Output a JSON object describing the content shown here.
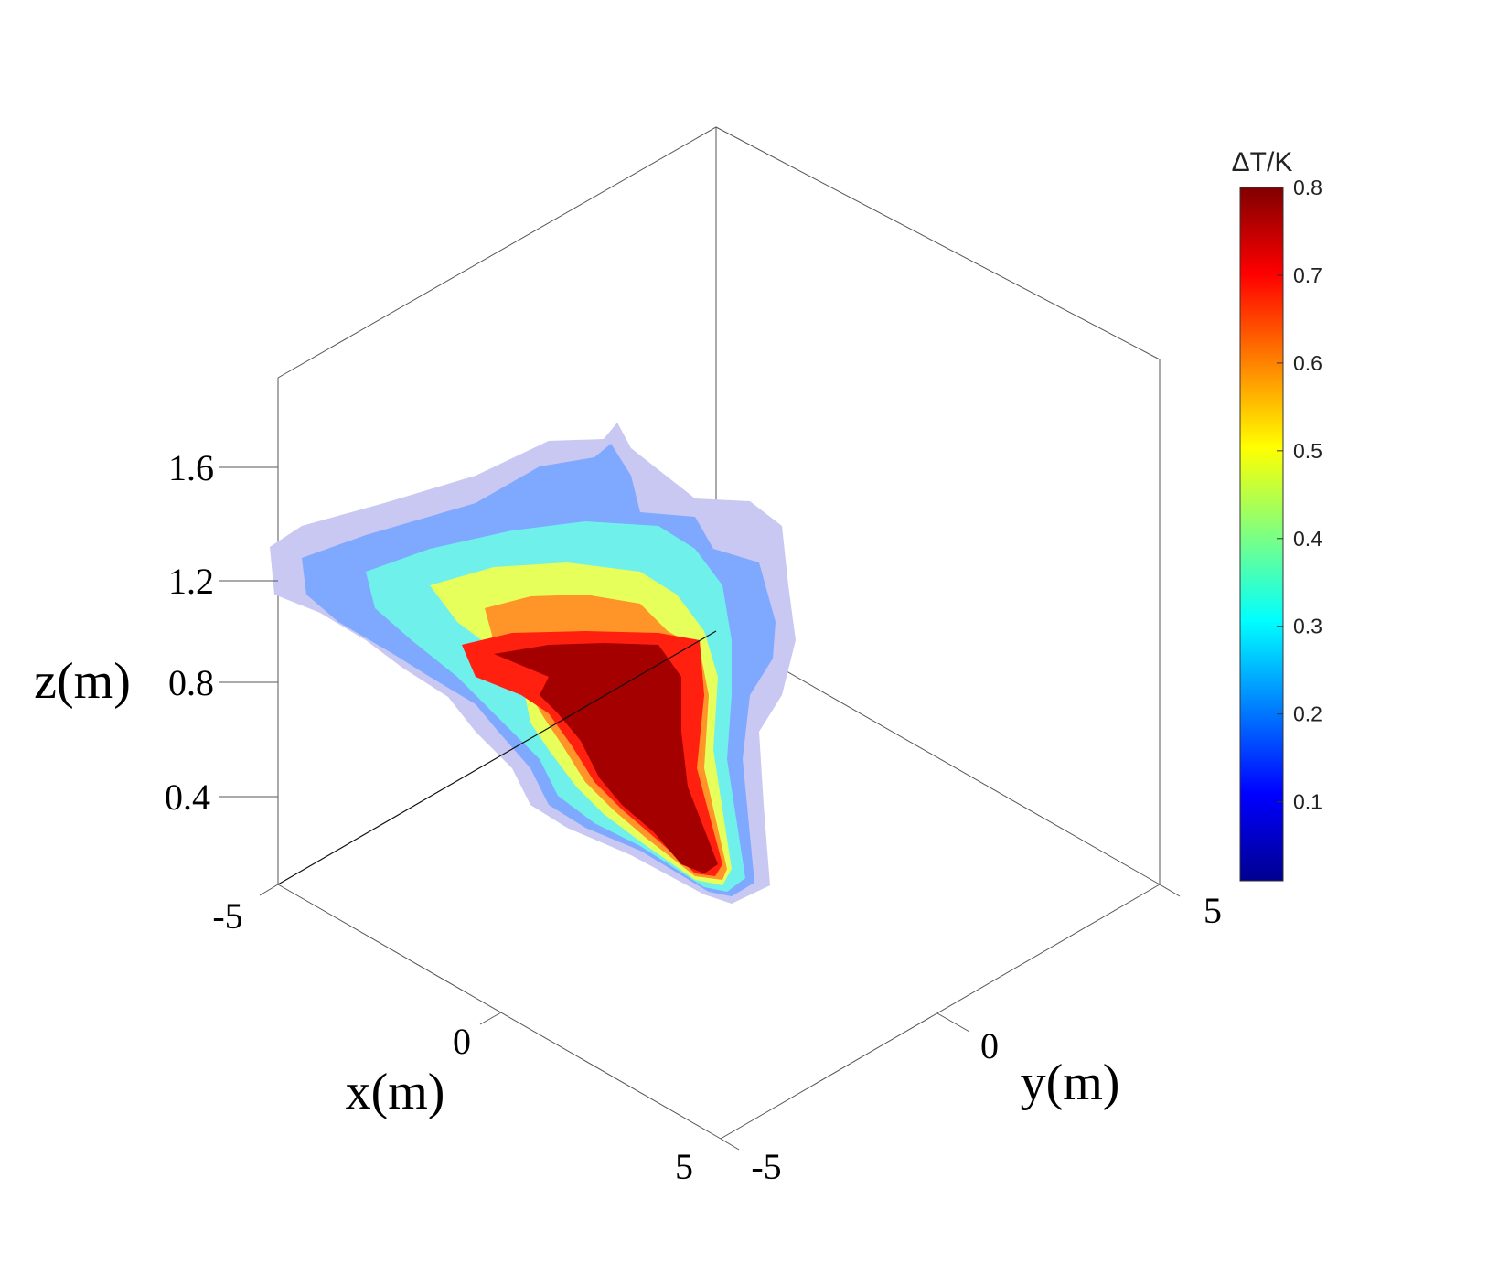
{
  "chart_data": {
    "type": "3d-volume-contour",
    "xlabel": "x(m)",
    "ylabel": "y(m)",
    "zlabel": "z(m)",
    "x_ticks": [
      "-5",
      "0",
      "5"
    ],
    "y_ticks": [
      "-5",
      "0",
      "5"
    ],
    "z_ticks": [
      "1.6",
      "1.2",
      "0.8",
      "0.4"
    ],
    "xlim": [
      -5,
      5
    ],
    "ylim": [
      -5,
      5
    ],
    "colorbar": {
      "title": "ΔT/K",
      "colormap": "jet",
      "range": [
        0.01,
        0.8
      ],
      "ticks": [
        "0.8",
        "0.7",
        "0.6",
        "0.5",
        "0.4",
        "0.3",
        "0.2",
        "0.1"
      ],
      "colors": [
        "#00008f",
        "#0000ff",
        "#00ffff",
        "#ffff00",
        "#ff8000",
        "#ff0000",
        "#800000"
      ]
    },
    "plume_levels": [
      {
        "value": 0.1,
        "color": "#c8c8f2"
      },
      {
        "value": 0.2,
        "color": "#7fa8ff"
      },
      {
        "value": 0.3,
        "color": "#70f0ea"
      },
      {
        "value": 0.45,
        "color": "#e6ff5a"
      },
      {
        "value": 0.6,
        "color": "#ff9428"
      },
      {
        "value": 0.7,
        "color": "#ff2010"
      },
      {
        "value": 0.8,
        "color": "#a50000"
      }
    ]
  }
}
